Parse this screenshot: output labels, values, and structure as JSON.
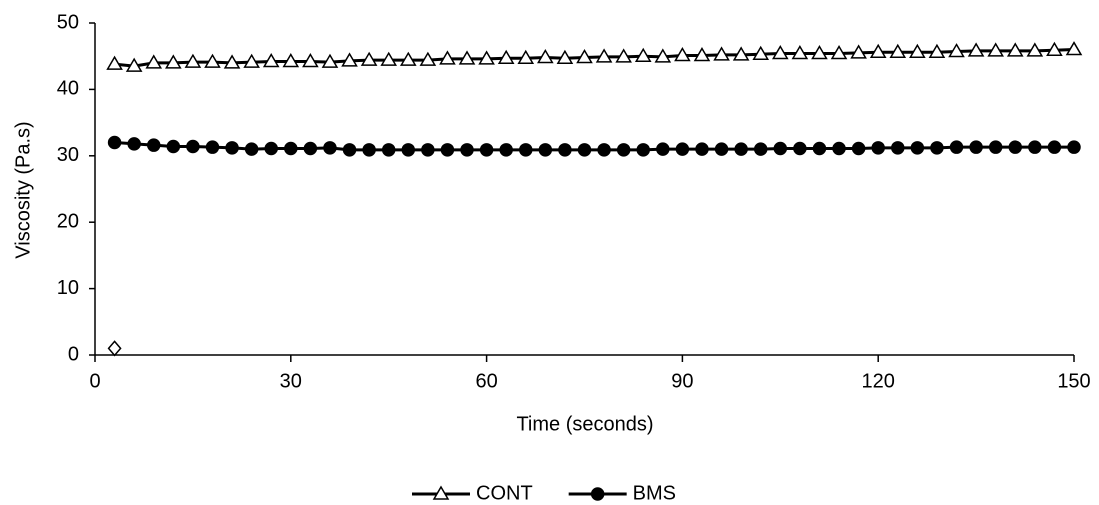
{
  "chart_data": {
    "type": "line",
    "x_label": "Time (seconds)",
    "y_label": "Viscosity  (Pa.s)",
    "x": [
      3,
      6,
      9,
      12,
      15,
      18,
      21,
      24,
      27,
      30,
      33,
      36,
      39,
      42,
      45,
      48,
      51,
      54,
      57,
      60,
      63,
      66,
      69,
      72,
      75,
      78,
      81,
      84,
      87,
      90,
      93,
      96,
      99,
      102,
      105,
      108,
      111,
      114,
      117,
      120,
      123,
      126,
      129,
      132,
      135,
      138,
      141,
      144,
      147,
      150
    ],
    "series": [
      {
        "name": "CONT",
        "color": "#000000",
        "marker": "triangle",
        "marker_fill": "#ffffff",
        "line": true,
        "values": [
          43.8,
          43.5,
          44.0,
          44.0,
          44.1,
          44.1,
          44.0,
          44.1,
          44.2,
          44.2,
          44.2,
          44.1,
          44.3,
          44.4,
          44.4,
          44.4,
          44.4,
          44.6,
          44.6,
          44.6,
          44.7,
          44.7,
          44.8,
          44.7,
          44.8,
          44.9,
          44.9,
          45.0,
          44.9,
          45.1,
          45.1,
          45.2,
          45.2,
          45.3,
          45.4,
          45.4,
          45.4,
          45.4,
          45.5,
          45.6,
          45.6,
          45.6,
          45.6,
          45.7,
          45.8,
          45.8,
          45.8,
          45.8,
          45.9,
          46.0
        ]
      },
      {
        "name": "BMS",
        "color": "#000000",
        "marker": "circle",
        "marker_fill": "#000000",
        "line": true,
        "values": [
          32.0,
          31.8,
          31.6,
          31.4,
          31.4,
          31.3,
          31.2,
          31.0,
          31.1,
          31.1,
          31.1,
          31.2,
          30.9,
          30.9,
          30.9,
          30.9,
          30.9,
          30.9,
          30.9,
          30.9,
          30.9,
          30.9,
          30.9,
          30.9,
          30.9,
          30.9,
          30.9,
          30.9,
          31.0,
          31.0,
          31.0,
          31.0,
          31.0,
          31.0,
          31.1,
          31.1,
          31.1,
          31.1,
          31.1,
          31.2,
          31.2,
          31.2,
          31.2,
          31.3,
          31.3,
          31.3,
          31.3,
          31.3,
          31.3,
          31.3
        ]
      },
      {
        "color": "#000000",
        "marker": "diamond",
        "marker_fill": "#ffffff",
        "line": false,
        "x": [
          3
        ],
        "values": [
          1
        ]
      }
    ],
    "xlim": [
      0,
      150
    ],
    "xticks": [
      0,
      30,
      60,
      90,
      120,
      150
    ],
    "ylim": [
      0,
      50
    ],
    "yticks": [
      0,
      10,
      20,
      30,
      40,
      50
    ],
    "grid": false,
    "legend": "bottom"
  }
}
